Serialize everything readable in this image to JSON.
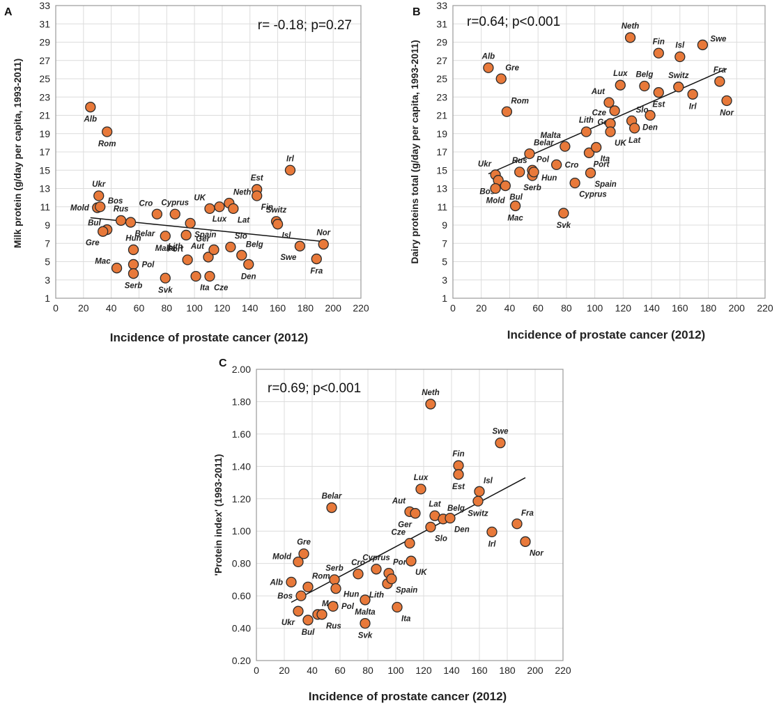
{
  "chart_data": [
    {
      "type": "scatter",
      "panel": "A",
      "stat": "r= -0.18; p=0.27",
      "xlabel": "Incidence of prostate cancer (2012)",
      "ylabel": "Milk protein (g/day per capita, 1993-2011)",
      "xlim": [
        0,
        220
      ],
      "ylim": [
        1,
        33
      ],
      "xticks": [
        0,
        20,
        40,
        60,
        80,
        100,
        120,
        140,
        160,
        180,
        200,
        220
      ],
      "yticks": [
        1,
        3,
        5,
        7,
        9,
        11,
        13,
        15,
        17,
        19,
        21,
        23,
        25,
        27,
        29,
        31,
        33
      ],
      "ytick_labels": [
        "1",
        "3",
        "5",
        "7",
        "9",
        "11",
        "13",
        "15",
        "17",
        "19",
        "21",
        "23",
        "25",
        "27",
        "29",
        "31",
        "33"
      ],
      "trendline": [
        [
          25,
          9.8
        ],
        [
          193,
          7.2
        ]
      ],
      "points": [
        {
          "label": "Alb",
          "x": 25,
          "y": 21.9,
          "pos": "below"
        },
        {
          "label": "Rom",
          "x": 37,
          "y": 19.2,
          "pos": "below"
        },
        {
          "label": "Ukr",
          "x": 31,
          "y": 12.2,
          "pos": "above"
        },
        {
          "label": "Mold",
          "x": 30,
          "y": 10.9,
          "pos": "left"
        },
        {
          "label": "Bos",
          "x": 32,
          "y": 11.0,
          "pos": "right-up"
        },
        {
          "label": "Bul",
          "x": 37,
          "y": 8.5,
          "pos": "upleft"
        },
        {
          "label": "Gre",
          "x": 34,
          "y": 8.3,
          "pos": "below-left"
        },
        {
          "label": "Rus",
          "x": 47,
          "y": 9.5,
          "pos": "above"
        },
        {
          "label": "Belar",
          "x": 54,
          "y": 9.3,
          "pos": "below-right"
        },
        {
          "label": "Hun",
          "x": 56,
          "y": 6.3,
          "pos": "above"
        },
        {
          "label": "Mac",
          "x": 44,
          "y": 4.3,
          "pos": "upleft"
        },
        {
          "label": "Pol",
          "x": 56,
          "y": 4.7,
          "pos": "right"
        },
        {
          "label": "Serb",
          "x": 56,
          "y": 3.7,
          "pos": "below"
        },
        {
          "label": "Cro",
          "x": 73,
          "y": 10.2,
          "pos": "above-left"
        },
        {
          "label": "Cyprus",
          "x": 86,
          "y": 10.2,
          "pos": "above"
        },
        {
          "label": "Malta",
          "x": 79,
          "y": 7.8,
          "pos": "below"
        },
        {
          "label": "Lith",
          "x": 94,
          "y": 7.9,
          "pos": "below-left"
        },
        {
          "label": "Spain",
          "x": 97,
          "y": 9.2,
          "pos": "below-right"
        },
        {
          "label": "Port",
          "x": 95,
          "y": 5.2,
          "pos": "above-left"
        },
        {
          "label": "Svk",
          "x": 79,
          "y": 3.2,
          "pos": "below"
        },
        {
          "label": "Ita",
          "x": 101,
          "y": 3.4,
          "pos": "below-right"
        },
        {
          "label": "UK",
          "x": 111,
          "y": 10.8,
          "pos": "above-left"
        },
        {
          "label": "Lux",
          "x": 118,
          "y": 11.0,
          "pos": "below"
        },
        {
          "label": "Neth",
          "x": 125,
          "y": 11.4,
          "pos": "above-right"
        },
        {
          "label": "Lat",
          "x": 128,
          "y": 10.8,
          "pos": "below-right"
        },
        {
          "label": "Aut",
          "x": 110,
          "y": 5.5,
          "pos": "above-left"
        },
        {
          "label": "Ger",
          "x": 114,
          "y": 6.3,
          "pos": "above-left"
        },
        {
          "label": "Cze",
          "x": 111,
          "y": 3.4,
          "pos": "below-right"
        },
        {
          "label": "Slo",
          "x": 126,
          "y": 6.6,
          "pos": "above-right"
        },
        {
          "label": "Belg",
          "x": 134,
          "y": 5.7,
          "pos": "above-right"
        },
        {
          "label": "Den",
          "x": 139,
          "y": 4.7,
          "pos": "below"
        },
        {
          "label": "Est",
          "x": 145,
          "y": 12.9,
          "pos": "above"
        },
        {
          "label": "Fin",
          "x": 145,
          "y": 12.2,
          "pos": "below-right"
        },
        {
          "label": "Switz",
          "x": 159,
          "y": 9.4,
          "pos": "above"
        },
        {
          "label": "Isl",
          "x": 160,
          "y": 9.1,
          "pos": "below-right"
        },
        {
          "label": "Irl",
          "x": 169,
          "y": 15.0,
          "pos": "above"
        },
        {
          "label": "Swe",
          "x": 176,
          "y": 6.7,
          "pos": "below-left"
        },
        {
          "label": "Nor",
          "x": 193,
          "y": 6.9,
          "pos": "above"
        },
        {
          "label": "Fra",
          "x": 188,
          "y": 5.3,
          "pos": "below"
        }
      ]
    },
    {
      "type": "scatter",
      "panel": "B",
      "stat": "r=0.64; p<0.001",
      "xlabel": "Incidence of prostate cancer (2012)",
      "ylabel": "Dairy proteins total (g/day per capita, 1993-2011)",
      "xlim": [
        0,
        220
      ],
      "ylim": [
        1,
        33
      ],
      "xticks": [
        0,
        20,
        40,
        60,
        80,
        100,
        120,
        140,
        160,
        180,
        200,
        220
      ],
      "yticks": [
        1,
        3,
        5,
        7,
        9,
        11,
        13,
        15,
        17,
        19,
        21,
        23,
        25,
        27,
        29,
        31,
        33
      ],
      "ytick_labels": [
        "1",
        "3",
        "5",
        "7",
        "9",
        "11",
        "13",
        "15",
        "17",
        "19",
        "21",
        "23",
        "25",
        "27",
        "29",
        "31",
        "33"
      ],
      "trendline": [
        [
          25,
          14.6
        ],
        [
          193,
          26.1
        ]
      ],
      "points": [
        {
          "label": "Alb",
          "x": 25,
          "y": 26.2,
          "pos": "above"
        },
        {
          "label": "Gre",
          "x": 34,
          "y": 25.0,
          "pos": "above-right"
        },
        {
          "label": "Rom",
          "x": 38,
          "y": 21.4,
          "pos": "above-right"
        },
        {
          "label": "Ukr",
          "x": 30,
          "y": 14.5,
          "pos": "above-left"
        },
        {
          "label": "Bos",
          "x": 32,
          "y": 13.9,
          "pos": "below-left"
        },
        {
          "label": "Mold",
          "x": 30,
          "y": 13.0,
          "pos": "below"
        },
        {
          "label": "Bul",
          "x": 37,
          "y": 13.3,
          "pos": "below-right"
        },
        {
          "label": "Mac",
          "x": 44,
          "y": 11.1,
          "pos": "below"
        },
        {
          "label": "Rus",
          "x": 47,
          "y": 14.8,
          "pos": "above"
        },
        {
          "label": "Pol",
          "x": 56,
          "y": 15.0,
          "pos": "above-right"
        },
        {
          "label": "Belar",
          "x": 54,
          "y": 16.8,
          "pos": "above-right"
        },
        {
          "label": "Serb",
          "x": 56,
          "y": 14.4,
          "pos": "below"
        },
        {
          "label": "Hun",
          "x": 57,
          "y": 14.8,
          "pos": "right-down"
        },
        {
          "label": "Cro",
          "x": 73,
          "y": 15.6,
          "pos": "right"
        },
        {
          "label": "Malta",
          "x": 79,
          "y": 17.6,
          "pos": "above-left"
        },
        {
          "label": "Cyprus",
          "x": 86,
          "y": 13.6,
          "pos": "below-right"
        },
        {
          "label": "Svk",
          "x": 78,
          "y": 10.3,
          "pos": "below"
        },
        {
          "label": "Lith",
          "x": 94,
          "y": 19.2,
          "pos": "above"
        },
        {
          "label": "Port",
          "x": 96,
          "y": 16.9,
          "pos": "below-right"
        },
        {
          "label": "Spain",
          "x": 97,
          "y": 14.7,
          "pos": "below-right"
        },
        {
          "label": "Ita",
          "x": 101,
          "y": 17.5,
          "pos": "below-right"
        },
        {
          "label": "Aut",
          "x": 110,
          "y": 22.4,
          "pos": "above-left"
        },
        {
          "label": "Ger",
          "x": 114,
          "y": 21.5,
          "pos": "below-left"
        },
        {
          "label": "Cze",
          "x": 111,
          "y": 20.1,
          "pos": "above-left"
        },
        {
          "label": "UK",
          "x": 111,
          "y": 19.2,
          "pos": "below-right"
        },
        {
          "label": "Lux",
          "x": 118,
          "y": 24.3,
          "pos": "above"
        },
        {
          "label": "Neth",
          "x": 125,
          "y": 29.5,
          "pos": "above"
        },
        {
          "label": "Slo",
          "x": 126,
          "y": 20.4,
          "pos": "above-right"
        },
        {
          "label": "Lat",
          "x": 128,
          "y": 19.6,
          "pos": "below"
        },
        {
          "label": "Belg",
          "x": 135,
          "y": 24.2,
          "pos": "above"
        },
        {
          "label": "Den",
          "x": 139,
          "y": 21.0,
          "pos": "below"
        },
        {
          "label": "Fin",
          "x": 145,
          "y": 27.8,
          "pos": "above"
        },
        {
          "label": "Est",
          "x": 145,
          "y": 23.5,
          "pos": "below"
        },
        {
          "label": "Isl",
          "x": 160,
          "y": 27.4,
          "pos": "above"
        },
        {
          "label": "Switz",
          "x": 159,
          "y": 24.1,
          "pos": "above"
        },
        {
          "label": "Irl",
          "x": 169,
          "y": 23.3,
          "pos": "below"
        },
        {
          "label": "Swe",
          "x": 176,
          "y": 28.7,
          "pos": "right-up"
        },
        {
          "label": "Fra",
          "x": 188,
          "y": 24.7,
          "pos": "above"
        },
        {
          "label": "Nor",
          "x": 193,
          "y": 22.6,
          "pos": "below"
        }
      ]
    },
    {
      "type": "scatter",
      "panel": "C",
      "stat": "r=0.69; p<0.001",
      "xlabel": "Incidence of prostate cancer (2012)",
      "ylabel": "'Protein index' (1993-2011)",
      "xlim": [
        0,
        220
      ],
      "ylim": [
        0.2,
        2.0
      ],
      "xticks": [
        0,
        20,
        40,
        60,
        80,
        100,
        120,
        140,
        160,
        180,
        200,
        220
      ],
      "yticks": [
        0.2,
        0.4,
        0.6,
        0.8,
        1.0,
        1.2,
        1.4,
        1.6,
        1.8,
        2.0
      ],
      "ytick_labels": [
        "0.20",
        "0.40",
        "0.60",
        "0.80",
        "1.00",
        "1.20",
        "1.40",
        "1.60",
        "1.80",
        "2.00"
      ],
      "trendline": [
        [
          25,
          0.56
        ],
        [
          193,
          1.33
        ]
      ],
      "points": [
        {
          "label": "Alb",
          "x": 25,
          "y": 0.685,
          "pos": "left"
        },
        {
          "label": "Gre",
          "x": 34,
          "y": 0.86,
          "pos": "above"
        },
        {
          "label": "Mold",
          "x": 30,
          "y": 0.81,
          "pos": "left-up"
        },
        {
          "label": "Bos",
          "x": 32,
          "y": 0.6,
          "pos": "left"
        },
        {
          "label": "Ukr",
          "x": 30,
          "y": 0.505,
          "pos": "below-left"
        },
        {
          "label": "Bul",
          "x": 37,
          "y": 0.45,
          "pos": "below"
        },
        {
          "label": "Rom",
          "x": 37,
          "y": 0.655,
          "pos": "above-right"
        },
        {
          "label": "Mac",
          "x": 44,
          "y": 0.485,
          "pos": "above-right"
        },
        {
          "label": "Rus",
          "x": 47,
          "y": 0.485,
          "pos": "below-right"
        },
        {
          "label": "Pol",
          "x": 55,
          "y": 0.535,
          "pos": "right"
        },
        {
          "label": "Serb",
          "x": 56,
          "y": 0.7,
          "pos": "above"
        },
        {
          "label": "Hun",
          "x": 57,
          "y": 0.645,
          "pos": "right-down"
        },
        {
          "label": "Belar",
          "x": 54,
          "y": 1.145,
          "pos": "above"
        },
        {
          "label": "Cro",
          "x": 73,
          "y": 0.735,
          "pos": "above"
        },
        {
          "label": "Cyprus",
          "x": 86,
          "y": 0.765,
          "pos": "above"
        },
        {
          "label": "Malta",
          "x": 78,
          "y": 0.575,
          "pos": "below"
        },
        {
          "label": "Svk",
          "x": 78,
          "y": 0.43,
          "pos": "below"
        },
        {
          "label": "Lith",
          "x": 94,
          "y": 0.675,
          "pos": "below-left"
        },
        {
          "label": "Port",
          "x": 95,
          "y": 0.74,
          "pos": "above-right"
        },
        {
          "label": "Spain",
          "x": 97,
          "y": 0.705,
          "pos": "below-right"
        },
        {
          "label": "Ita",
          "x": 101,
          "y": 0.53,
          "pos": "below-right"
        },
        {
          "label": "Cze",
          "x": 110,
          "y": 0.925,
          "pos": "above-left"
        },
        {
          "label": "UK",
          "x": 111,
          "y": 0.815,
          "pos": "below-right"
        },
        {
          "label": "Aut",
          "x": 110,
          "y": 1.12,
          "pos": "above-left"
        },
        {
          "label": "Ger",
          "x": 114,
          "y": 1.11,
          "pos": "below-left"
        },
        {
          "label": "Lux",
          "x": 118,
          "y": 1.26,
          "pos": "above"
        },
        {
          "label": "Neth",
          "x": 125,
          "y": 1.785,
          "pos": "above"
        },
        {
          "label": "Slo",
          "x": 125,
          "y": 1.025,
          "pos": "below-right"
        },
        {
          "label": "Lat",
          "x": 128,
          "y": 1.095,
          "pos": "above"
        },
        {
          "label": "Belg",
          "x": 134,
          "y": 1.075,
          "pos": "above-right"
        },
        {
          "label": "Den",
          "x": 139,
          "y": 1.08,
          "pos": "below-right"
        },
        {
          "label": "Fin",
          "x": 145,
          "y": 1.405,
          "pos": "above"
        },
        {
          "label": "Est",
          "x": 145,
          "y": 1.35,
          "pos": "below"
        },
        {
          "label": "Isl",
          "x": 160,
          "y": 1.245,
          "pos": "above-right"
        },
        {
          "label": "Switz",
          "x": 159,
          "y": 1.185,
          "pos": "below"
        },
        {
          "label": "Irl",
          "x": 169,
          "y": 0.995,
          "pos": "below"
        },
        {
          "label": "Swe",
          "x": 175,
          "y": 1.545,
          "pos": "above"
        },
        {
          "label": "Fra",
          "x": 187,
          "y": 1.045,
          "pos": "above-right"
        },
        {
          "label": "Nor",
          "x": 193,
          "y": 0.935,
          "pos": "below-right"
        }
      ]
    }
  ],
  "style": {
    "marker_fill": "#E8793A",
    "marker_stroke": "#2a2a2a",
    "grid": "#dcdcdc",
    "frame": "#9a9a9a"
  }
}
